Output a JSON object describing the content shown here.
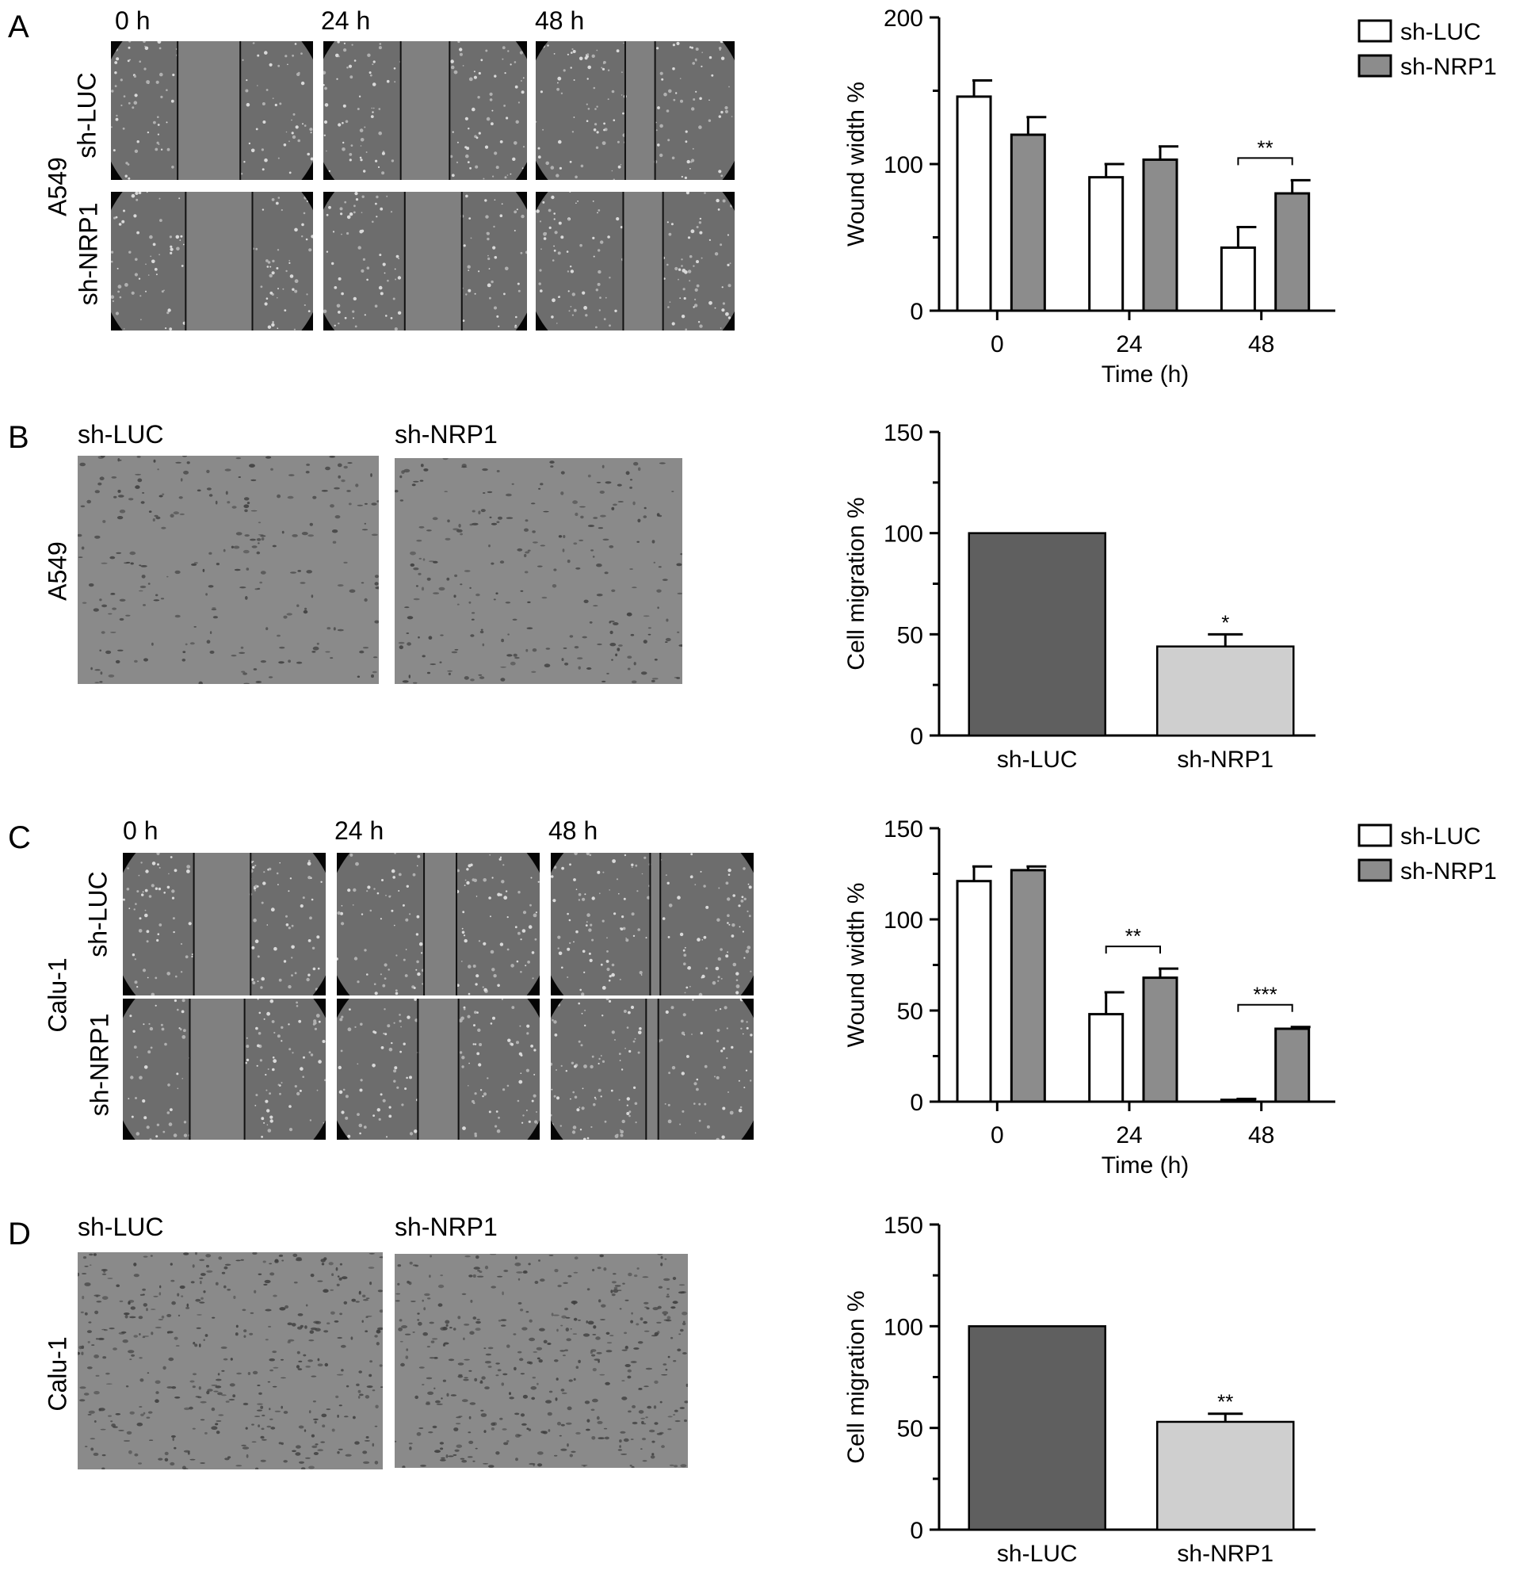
{
  "panels": {
    "A": {
      "letter": "A",
      "cell_line": "A549",
      "time_labels": [
        "0 h",
        "24 h",
        "48 h"
      ],
      "row_labels": [
        "sh-LUC",
        "sh-NRP1"
      ]
    },
    "B": {
      "letter": "B",
      "cell_line": "A549",
      "col_labels": [
        "sh-LUC",
        "sh-NRP1"
      ]
    },
    "C": {
      "letter": "C",
      "cell_line": "Calu-1",
      "time_labels": [
        "0 h",
        "24 h",
        "48 h"
      ],
      "row_labels": [
        "sh-LUC",
        "sh-NRP1"
      ]
    },
    "D": {
      "letter": "D",
      "cell_line": "Calu-1",
      "col_labels": [
        "sh-LUC",
        "sh-NRP1"
      ]
    }
  },
  "colors": {
    "sh_luc_wound": "#ffffff",
    "sh_nrp1_wound": "#8c8c8c",
    "migration_sh_luc": "#5f5f5f",
    "migration_sh_nrp1": "#cfcfcf",
    "axis": "#000000"
  },
  "chart_data": [
    {
      "id": "A",
      "type": "bar",
      "categories": [
        "0",
        "24",
        "48"
      ],
      "xlabel": "Time (h)",
      "ylabel": "Wound width %",
      "ylim": [
        0,
        200
      ],
      "yticks": [
        "0",
        "100",
        "200"
      ],
      "legend": "top-right",
      "series": [
        {
          "name": "sh-LUC",
          "values": [
            146,
            91,
            43
          ],
          "errors": [
            11,
            9,
            14
          ]
        },
        {
          "name": "sh-NRP1",
          "values": [
            120,
            103,
            80
          ],
          "errors": [
            12,
            9,
            9
          ]
        }
      ],
      "annotations": [
        {
          "category": "48",
          "text": "**"
        }
      ]
    },
    {
      "id": "B",
      "type": "bar",
      "categories": [
        "sh-LUC",
        "sh-NRP1"
      ],
      "xlabel": "",
      "ylabel": "Cell migration %",
      "ylim": [
        0,
        150
      ],
      "yticks": [
        "0",
        "50",
        "100",
        "150"
      ],
      "values": [
        100,
        44
      ],
      "errors": [
        0,
        6
      ],
      "annotations": [
        {
          "category": "sh-NRP1",
          "text": "*"
        }
      ]
    },
    {
      "id": "C",
      "type": "bar",
      "categories": [
        "0",
        "24",
        "48"
      ],
      "xlabel": "Time (h)",
      "ylabel": "Wound width %",
      "ylim": [
        0,
        150
      ],
      "yticks": [
        "0",
        "50",
        "100",
        "150"
      ],
      "legend": "top-right",
      "series": [
        {
          "name": "sh-LUC",
          "values": [
            121,
            48,
            1
          ],
          "errors": [
            8,
            12,
            0.5
          ]
        },
        {
          "name": "sh-NRP1",
          "values": [
            127,
            68,
            40
          ],
          "errors": [
            2,
            5,
            1
          ]
        }
      ],
      "annotations": [
        {
          "category": "24",
          "text": "**"
        },
        {
          "category": "48",
          "text": "***"
        }
      ]
    },
    {
      "id": "D",
      "type": "bar",
      "categories": [
        "sh-LUC",
        "sh-NRP1"
      ],
      "xlabel": "",
      "ylabel": "Cell migration %",
      "ylim": [
        0,
        150
      ],
      "yticks": [
        "0",
        "50",
        "100",
        "150"
      ],
      "values": [
        100,
        53
      ],
      "errors": [
        0,
        4
      ],
      "annotations": [
        {
          "category": "sh-NRP1",
          "text": "**"
        }
      ]
    }
  ]
}
